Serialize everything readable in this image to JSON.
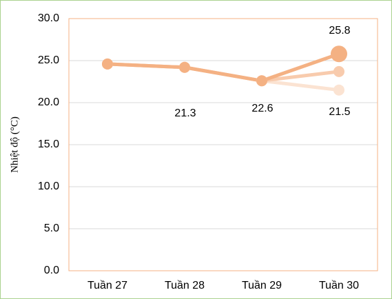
{
  "chart_data": {
    "type": "line",
    "y_label": "Nhiệt độ (°C)",
    "categories": [
      "Tuần 27",
      "Tuần 28",
      "Tuần 29",
      "Tuần 30"
    ],
    "series": [
      {
        "color": "#fbe3d2",
        "values": [
          24.6,
          24.2,
          22.6,
          21.5
        ]
      },
      {
        "color": "#f8cbad",
        "values": [
          24.6,
          24.2,
          22.6,
          23.7
        ]
      },
      {
        "color": "#f4b183",
        "values": [
          24.6,
          24.2,
          22.6,
          25.8
        ],
        "highlight_last": true
      }
    ],
    "annotations": [
      "25.8",
      "21.3",
      "22.6",
      "21.5"
    ],
    "ylim": [
      0,
      30
    ],
    "yticks": [
      {
        "value": 0,
        "label": "0.0"
      },
      {
        "value": 5,
        "label": "5.0"
      },
      {
        "value": 10,
        "label": "10.0"
      },
      {
        "value": 15,
        "label": "15.0"
      },
      {
        "value": 20,
        "label": "20.0"
      },
      {
        "value": 25,
        "label": "25.0"
      },
      {
        "value": 30,
        "label": "30.0"
      }
    ],
    "grid": true
  }
}
